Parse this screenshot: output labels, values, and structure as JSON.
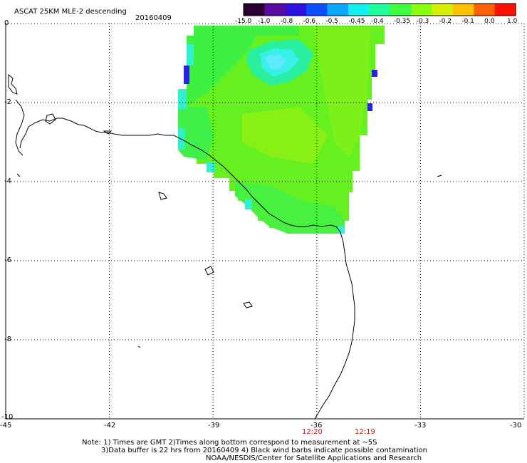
{
  "header": {
    "title": "ASCAT 25KM MLE-2 descending",
    "date": "20160409"
  },
  "colorbar": {
    "labels": [
      "-15.0",
      "-1.0",
      "-0.8",
      "-0.6",
      "-0.5",
      "-0.45",
      "-0.4",
      "-0.35",
      "-0.3",
      "-0.2",
      "-0.1",
      "0.0",
      "1.0"
    ],
    "colors": [
      "#2a0030",
      "#5a0aa0",
      "#3010e0",
      "#0a50ff",
      "#0aa8ff",
      "#12f0f0",
      "#20ff9a",
      "#40ff40",
      "#8cff10",
      "#d8f000",
      "#ffc000",
      "#ff6000",
      "#ff1000"
    ]
  },
  "axes": {
    "y_labels": [
      "0",
      "-2",
      "-4",
      "-6",
      "-8",
      "-10"
    ],
    "x_labels": [
      "-45",
      "-42",
      "-39",
      "-36",
      "-33",
      "-30"
    ],
    "lat_range": [
      -10,
      0
    ],
    "lon_range": [
      -45,
      -30
    ],
    "grid": "dotted"
  },
  "times": [
    "12:20",
    "12:19"
  ],
  "notes": {
    "line1": "Note: 1) Times are GMT 2)Times along bottom correspond to measurement at ~5S",
    "line2": "3)Data buffer is 22 hrs from 20160409 4) Black wind barbs indicate possible contamination",
    "line3": "NOAA/NESDIS/Center for Satellite Applications and Research"
  }
}
